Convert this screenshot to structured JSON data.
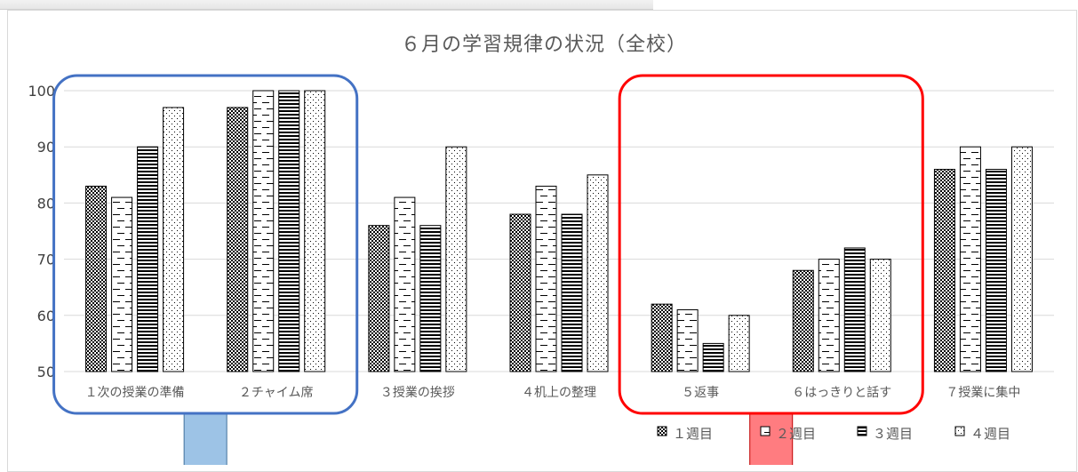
{
  "chart_data": {
    "type": "bar",
    "title": "６月の学習規律の状況（全校）",
    "categories": [
      "１次の授業の準備",
      "２チャイム席",
      "３授業の挨拶",
      "４机上の整理",
      "５返事",
      "６はっきりと話す",
      "７授業に集中"
    ],
    "series": [
      {
        "name": "１週目",
        "values": [
          83,
          97,
          76,
          78,
          62,
          68,
          86
        ]
      },
      {
        "name": "２週目",
        "values": [
          81,
          100,
          81,
          83,
          61,
          70,
          90
        ]
      },
      {
        "name": "３週目",
        "values": [
          90,
          100,
          76,
          78,
          55,
          72,
          86
        ]
      },
      {
        "name": "４週目",
        "values": [
          97,
          100,
          90,
          85,
          60,
          70,
          90
        ]
      }
    ],
    "yticks": [
      "50",
      "60",
      "70",
      "80",
      "90",
      "100"
    ],
    "ylim": [
      50,
      100
    ],
    "grid": true,
    "legend": "bottom-right",
    "highlights": [
      {
        "color": "#4472c4",
        "categories": [
          "１次の授業の準備",
          "２チャイム席"
        ],
        "callout_color": "#9dc3e6"
      },
      {
        "color": "#ff0000",
        "categories": [
          "５返事",
          "６はっきりと話す"
        ],
        "callout_color": "#ff7c80"
      }
    ]
  }
}
